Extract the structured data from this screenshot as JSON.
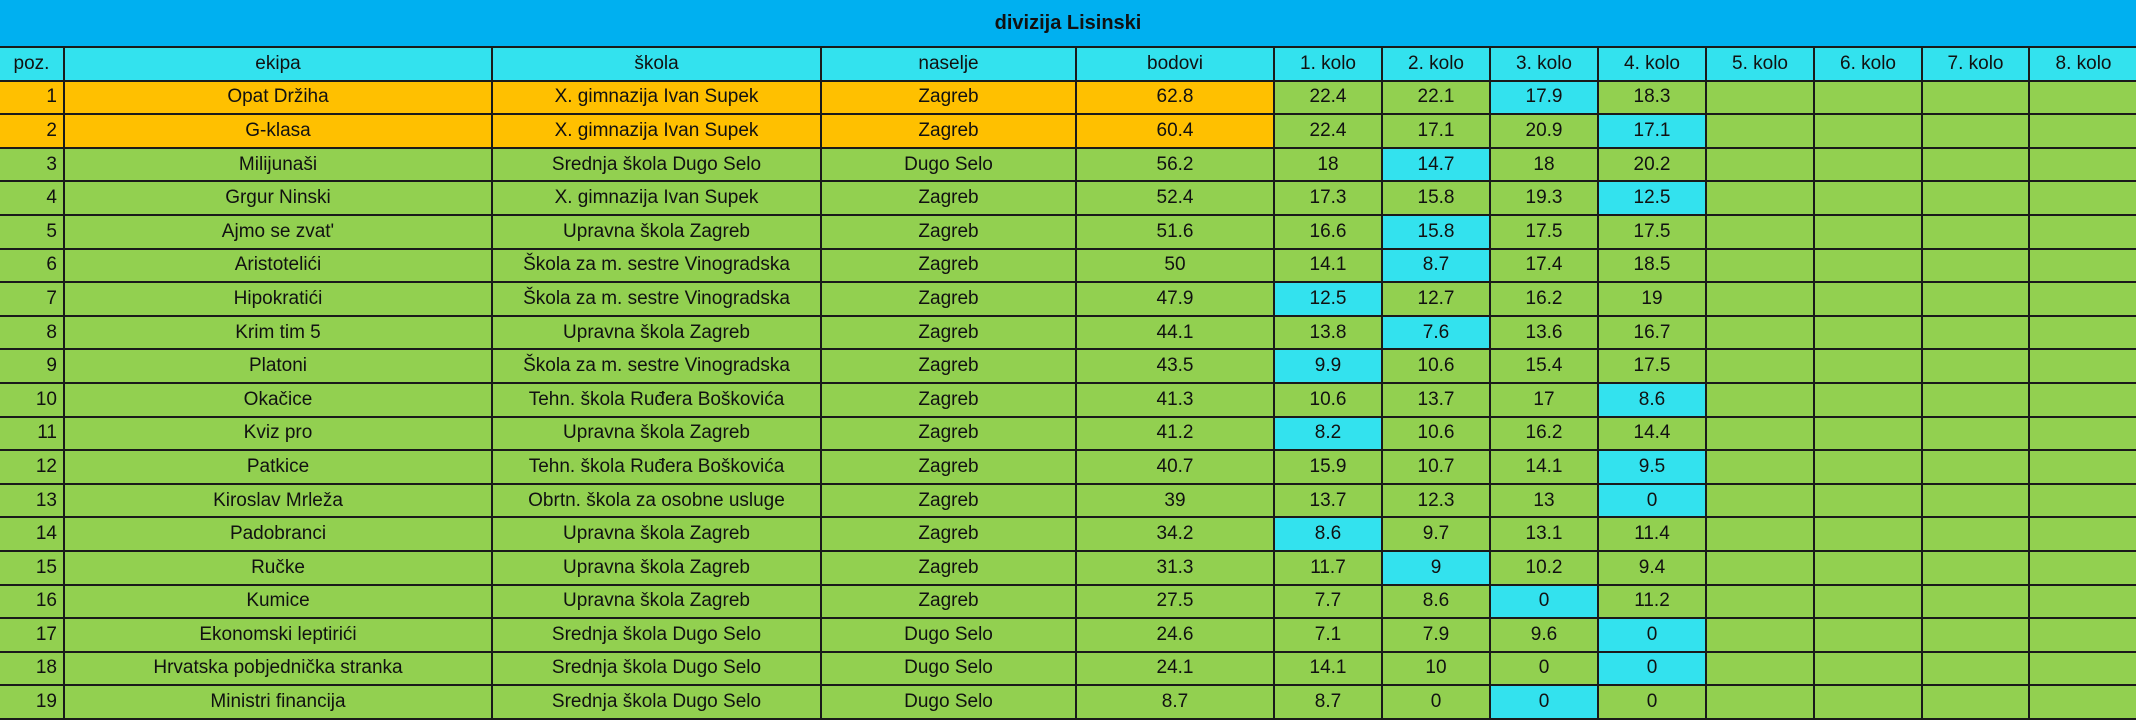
{
  "title": "divizija Lisinski",
  "colors": {
    "title_bar": "#00B0F0",
    "header": "#33E2EE",
    "top": "#FFC000",
    "default": "#92D050",
    "highlight": "#33E2EE"
  },
  "columns": [
    "poz.",
    "ekipa",
    "škola",
    "naselje",
    "bodovi",
    "1. kolo",
    "2. kolo",
    "3. kolo",
    "4. kolo",
    "5. kolo",
    "6. kolo",
    "7. kolo",
    "8. kolo"
  ],
  "rows": [
    {
      "pos": "1",
      "team": "Opat Držiha",
      "school": "X. gimnazija Ivan Supek",
      "town": "Zagreb",
      "points": "62.8",
      "rounds": [
        "22.4",
        "22.1",
        "17.9",
        "18.3",
        "",
        "",
        "",
        ""
      ],
      "highlight_round": 3,
      "style": "top"
    },
    {
      "pos": "2",
      "team": "G-klasa",
      "school": "X. gimnazija Ivan Supek",
      "town": "Zagreb",
      "points": "60.4",
      "rounds": [
        "22.4",
        "17.1",
        "20.9",
        "17.1",
        "",
        "",
        "",
        ""
      ],
      "highlight_round": 4,
      "style": "top"
    },
    {
      "pos": "3",
      "team": "Milijunaši",
      "school": "Srednja škola Dugo Selo",
      "town": "Dugo Selo",
      "points": "56.2",
      "rounds": [
        "18",
        "14.7",
        "18",
        "20.2",
        "",
        "",
        "",
        ""
      ],
      "highlight_round": 2,
      "style": "default"
    },
    {
      "pos": "4",
      "team": "Grgur Ninski",
      "school": "X. gimnazija Ivan Supek",
      "town": "Zagreb",
      "points": "52.4",
      "rounds": [
        "17.3",
        "15.8",
        "19.3",
        "12.5",
        "",
        "",
        "",
        ""
      ],
      "highlight_round": 4,
      "style": "default"
    },
    {
      "pos": "5",
      "team": "Ajmo se zvat'",
      "school": "Upravna škola Zagreb",
      "town": "Zagreb",
      "points": "51.6",
      "rounds": [
        "16.6",
        "15.8",
        "17.5",
        "17.5",
        "",
        "",
        "",
        ""
      ],
      "highlight_round": 2,
      "style": "default"
    },
    {
      "pos": "6",
      "team": "Aristotelići",
      "school": "Škola za m. sestre Vinogradska",
      "town": "Zagreb",
      "points": "50",
      "rounds": [
        "14.1",
        "8.7",
        "17.4",
        "18.5",
        "",
        "",
        "",
        ""
      ],
      "highlight_round": 2,
      "style": "default"
    },
    {
      "pos": "7",
      "team": "Hipokratići",
      "school": "Škola za m. sestre Vinogradska",
      "town": "Zagreb",
      "points": "47.9",
      "rounds": [
        "12.5",
        "12.7",
        "16.2",
        "19",
        "",
        "",
        "",
        ""
      ],
      "highlight_round": 1,
      "style": "default"
    },
    {
      "pos": "8",
      "team": "Krim tim 5",
      "school": "Upravna škola Zagreb",
      "town": "Zagreb",
      "points": "44.1",
      "rounds": [
        "13.8",
        "7.6",
        "13.6",
        "16.7",
        "",
        "",
        "",
        ""
      ],
      "highlight_round": 2,
      "style": "default"
    },
    {
      "pos": "9",
      "team": "Platoni",
      "school": "Škola za m. sestre Vinogradska",
      "town": "Zagreb",
      "points": "43.5",
      "rounds": [
        "9.9",
        "10.6",
        "15.4",
        "17.5",
        "",
        "",
        "",
        ""
      ],
      "highlight_round": 1,
      "style": "default"
    },
    {
      "pos": "10",
      "team": "Okačice",
      "school": "Tehn. škola Ruđera Boškovića",
      "town": "Zagreb",
      "points": "41.3",
      "rounds": [
        "10.6",
        "13.7",
        "17",
        "8.6",
        "",
        "",
        "",
        ""
      ],
      "highlight_round": 4,
      "style": "default"
    },
    {
      "pos": "11",
      "team": "Kviz pro",
      "school": "Upravna škola Zagreb",
      "town": "Zagreb",
      "points": "41.2",
      "rounds": [
        "8.2",
        "10.6",
        "16.2",
        "14.4",
        "",
        "",
        "",
        ""
      ],
      "highlight_round": 1,
      "style": "default"
    },
    {
      "pos": "12",
      "team": "Patkice",
      "school": "Tehn. škola Ruđera Boškovića",
      "town": "Zagreb",
      "points": "40.7",
      "rounds": [
        "15.9",
        "10.7",
        "14.1",
        "9.5",
        "",
        "",
        "",
        ""
      ],
      "highlight_round": 4,
      "style": "default"
    },
    {
      "pos": "13",
      "team": "Kiroslav Mrleža",
      "school": "Obrtn. škola za osobne usluge",
      "town": "Zagreb",
      "points": "39",
      "rounds": [
        "13.7",
        "12.3",
        "13",
        "0",
        "",
        "",
        "",
        ""
      ],
      "highlight_round": 4,
      "style": "default"
    },
    {
      "pos": "14",
      "team": "Padobranci",
      "school": "Upravna škola Zagreb",
      "town": "Zagreb",
      "points": "34.2",
      "rounds": [
        "8.6",
        "9.7",
        "13.1",
        "11.4",
        "",
        "",
        "",
        ""
      ],
      "highlight_round": 1,
      "style": "default"
    },
    {
      "pos": "15",
      "team": "Ručke",
      "school": "Upravna škola Zagreb",
      "town": "Zagreb",
      "points": "31.3",
      "rounds": [
        "11.7",
        "9",
        "10.2",
        "9.4",
        "",
        "",
        "",
        ""
      ],
      "highlight_round": 2,
      "style": "default"
    },
    {
      "pos": "16",
      "team": "Kumice",
      "school": "Upravna škola Zagreb",
      "town": "Zagreb",
      "points": "27.5",
      "rounds": [
        "7.7",
        "8.6",
        "0",
        "11.2",
        "",
        "",
        "",
        ""
      ],
      "highlight_round": 3,
      "style": "default"
    },
    {
      "pos": "17",
      "team": "Ekonomski leptirići",
      "school": "Srednja škola Dugo Selo",
      "town": "Dugo Selo",
      "points": "24.6",
      "rounds": [
        "7.1",
        "7.9",
        "9.6",
        "0",
        "",
        "",
        "",
        ""
      ],
      "highlight_round": 4,
      "style": "default"
    },
    {
      "pos": "18",
      "team": "Hrvatska pobjednička stranka",
      "school": "Srednja škola Dugo Selo",
      "town": "Dugo Selo",
      "points": "24.1",
      "rounds": [
        "14.1",
        "10",
        "0",
        "0",
        "",
        "",
        "",
        ""
      ],
      "highlight_round": 4,
      "style": "default"
    },
    {
      "pos": "19",
      "team": "Ministri financija",
      "school": "Srednja škola Dugo Selo",
      "town": "Dugo Selo",
      "points": "8.7",
      "rounds": [
        "8.7",
        "0",
        "0",
        "0",
        "",
        "",
        "",
        ""
      ],
      "highlight_round": 3,
      "style": "default"
    }
  ]
}
